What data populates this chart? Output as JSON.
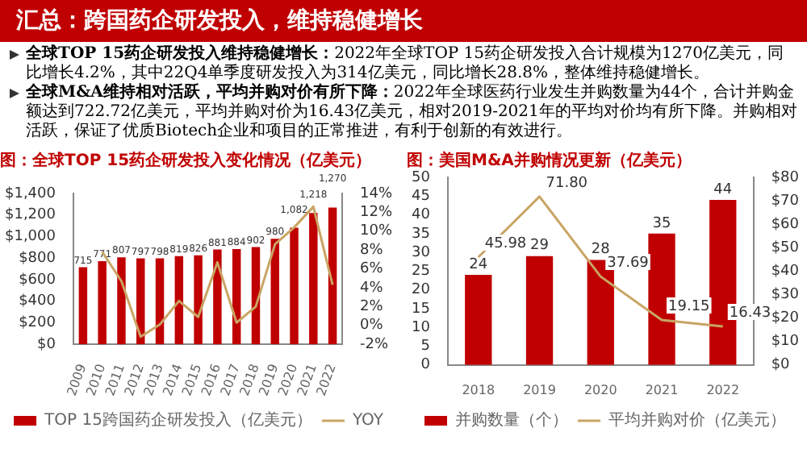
{
  "chart_data": [
    {
      "type": "other",
      "title": "汇总：跨国药企研发投入，维持稳健增长",
      "annotations": [
        "全球TOP 15药企研发投入维持稳健增长：2022年全球TOP 15药企研发投入合计规模为1270亿美元，同比增长4.2%，其中22Q4单季度研发投入为314亿美元，同比增长28.8%，整体维持稳健增长。",
        "全球M&A维持相对活跃，平均并购对价有所下降：2022年全球医药行业发生并购数量为44个，合计并购金额达到722.72亿美元，平均并购对价为16.43亿美元，相对2019-2021年的平均对价均有所下降。并购相对活跃，保证了优质Biotech企业和项目的正常推进，有利于创新的有效进行。"
      ]
    },
    {
      "type": "bar",
      "title": "图：全球TOP 15药企研发投入变化情况（亿美元）",
      "categories": [
        "2009",
        "2010",
        "2011",
        "2012",
        "2013",
        "2014",
        "2015",
        "2016",
        "2017",
        "2018",
        "2019",
        "2020",
        "2021",
        "2022"
      ],
      "legend": "bottom",
      "marker": "none",
      "series": [
        {
          "name": "TOP 15跨国药企研发投入（亿美元）",
          "type": "bar",
          "color": "#c00000",
          "values": [
            715,
            771,
            807,
            797,
            798,
            819,
            826,
            881,
            884,
            902,
            980,
            1082,
            1218,
            1270
          ],
          "value_labels": [
            "715",
            "771",
            "807",
            "797",
            "798",
            "819",
            "826",
            "881",
            "884",
            "902",
            "980",
            "1,082",
            "1,218",
            "1,270"
          ]
        },
        {
          "name": "YOY",
          "type": "line",
          "axis": "y2",
          "color": "#c9a463",
          "values": [
            null,
            7.8,
            4.7,
            -1.2,
            0.1,
            2.6,
            0.9,
            6.7,
            0.3,
            2.0,
            8.6,
            10.4,
            12.6,
            4.3
          ]
        }
      ],
      "ylim": [
        0,
        1400
      ],
      "yticks": [
        {
          "value": 0,
          "label": "$0"
        },
        {
          "value": 200,
          "label": "$200"
        },
        {
          "value": 400,
          "label": "$400"
        },
        {
          "value": 600,
          "label": "$600"
        },
        {
          "value": 800,
          "label": "$800"
        },
        {
          "value": 1000,
          "label": "$1,000"
        },
        {
          "value": 1200,
          "label": "$1,200"
        },
        {
          "value": 1400,
          "label": "$1,400"
        }
      ],
      "y2lim": [
        -2,
        14
      ],
      "y2ticks": [
        {
          "value": -2,
          "label": "-2%"
        },
        {
          "value": 0,
          "label": "0%"
        },
        {
          "value": 2,
          "label": "2%"
        },
        {
          "value": 4,
          "label": "4%"
        },
        {
          "value": 6,
          "label": "6%"
        },
        {
          "value": 8,
          "label": "8%"
        },
        {
          "value": 10,
          "label": "10%"
        },
        {
          "value": 12,
          "label": "12%"
        },
        {
          "value": 14,
          "label": "14%"
        }
      ]
    },
    {
      "type": "bar",
      "title": "图：美国M&A并购情况更新（亿美元）",
      "categories": [
        "2018",
        "2019",
        "2020",
        "2021",
        "2022"
      ],
      "legend": "bottom",
      "marker": "none",
      "series": [
        {
          "name": "并购数量（个）",
          "type": "bar",
          "color": "#c00000",
          "values": [
            24,
            29,
            28,
            35,
            44
          ],
          "value_labels": [
            "24",
            "29",
            "28",
            "35",
            "44"
          ]
        },
        {
          "name": "平均并购对价（亿美元）",
          "type": "line",
          "axis": "y2",
          "color": "#c9a463",
          "values": [
            45.98,
            71.8,
            37.69,
            19.15,
            16.43
          ],
          "value_labels": [
            "45.98",
            "71.80",
            "37.69",
            "19.15",
            "16.43"
          ]
        }
      ],
      "ylim": [
        0,
        50
      ],
      "yticks": [
        0,
        5,
        10,
        15,
        20,
        25,
        30,
        35,
        40,
        45,
        50
      ],
      "y2lim": [
        0,
        80
      ],
      "y2ticks": [
        {
          "value": 0,
          "label": "$0"
        },
        {
          "value": 10,
          "label": "$10"
        },
        {
          "value": 20,
          "label": "$20"
        },
        {
          "value": 30,
          "label": "$30"
        },
        {
          "value": 40,
          "label": "$40"
        },
        {
          "value": 50,
          "label": "$50"
        },
        {
          "value": 60,
          "label": "$60"
        },
        {
          "value": 70,
          "label": "$70"
        },
        {
          "value": 80,
          "label": "$80"
        }
      ]
    }
  ]
}
